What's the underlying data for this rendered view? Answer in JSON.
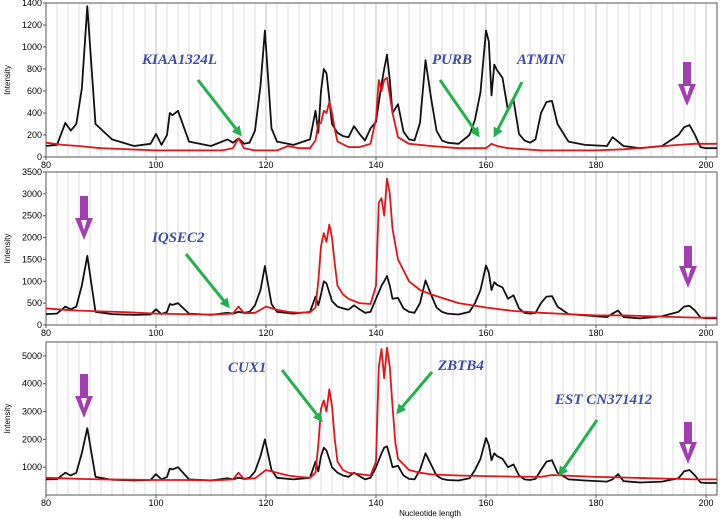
{
  "figure": {
    "xlabel": "Nucleotide length",
    "colors": {
      "black_trace": "#111111",
      "red_trace": "#e0141b",
      "grid": "#c8c8c8",
      "arrow_green": "#22b04f",
      "arrow_purple": "#a23fb0",
      "label_blue": "#3d4aa8"
    }
  },
  "chart_data": [
    {
      "type": "line",
      "ylabel": "Intensity",
      "xlim": [
        80,
        202
      ],
      "ylim": [
        0,
        1400
      ],
      "xticks": [
        80,
        100,
        120,
        140,
        160,
        180,
        200
      ],
      "yticks": [
        0,
        200,
        400,
        600,
        800,
        1000,
        1200,
        1400
      ],
      "series": [
        {
          "color": "#111111",
          "x": [
            80,
            82,
            83.5,
            84.5,
            85.5,
            86.5,
            87.5,
            89,
            92,
            96,
            99,
            100,
            101,
            102,
            102.5,
            103,
            104,
            106,
            110,
            113,
            114,
            115,
            116,
            117,
            118,
            119,
            119.8,
            121,
            122,
            125,
            128,
            129,
            129.5,
            130,
            130.5,
            131,
            132,
            133,
            134,
            135,
            136,
            137,
            138,
            139,
            140,
            141,
            141.5,
            142,
            142.5,
            143,
            144,
            145,
            146,
            147,
            148,
            149,
            150,
            151,
            152,
            153,
            155,
            157,
            158,
            159,
            160,
            160.5,
            161,
            161.5,
            162,
            163,
            164,
            165,
            166,
            167,
            168,
            169,
            170,
            171,
            172,
            173,
            175,
            178,
            182,
            183,
            184,
            185,
            188,
            192,
            195,
            196,
            197,
            198,
            199,
            200,
            202
          ],
          "y": [
            100,
            110,
            310,
            240,
            300,
            620,
            1370,
            300,
            160,
            100,
            120,
            210,
            110,
            200,
            400,
            380,
            420,
            140,
            100,
            160,
            130,
            170,
            120,
            130,
            240,
            650,
            1150,
            260,
            140,
            110,
            160,
            420,
            220,
            600,
            800,
            760,
            300,
            220,
            190,
            180,
            280,
            210,
            150,
            260,
            320,
            660,
            800,
            930,
            700,
            400,
            480,
            230,
            160,
            150,
            310,
            880,
            540,
            240,
            150,
            130,
            120,
            200,
            340,
            590,
            1150,
            1050,
            560,
            840,
            790,
            720,
            420,
            520,
            210,
            150,
            130,
            160,
            400,
            500,
            510,
            300,
            140,
            110,
            100,
            180,
            140,
            100,
            80,
            100,
            200,
            270,
            290,
            200,
            90,
            80,
            80
          ]
        },
        {
          "color": "#e0141b",
          "x": [
            80,
            83,
            86,
            88,
            90,
            95,
            100,
            105,
            110,
            112,
            114,
            115,
            116,
            118,
            120,
            122,
            124,
            126,
            128,
            129,
            129.5,
            130,
            130.5,
            131,
            131.5,
            132,
            132.5,
            133,
            135,
            137,
            139,
            140,
            140.5,
            141,
            141.5,
            142,
            142.5,
            143,
            144,
            146,
            150,
            155,
            160,
            161,
            162,
            164,
            170,
            175,
            180,
            185,
            190,
            195,
            198,
            202
          ],
          "y": [
            130,
            110,
            100,
            90,
            80,
            70,
            60,
            60,
            60,
            60,
            80,
            170,
            80,
            60,
            60,
            60,
            100,
            80,
            80,
            150,
            300,
            310,
            420,
            400,
            500,
            400,
            250,
            140,
            90,
            90,
            120,
            350,
            700,
            600,
            700,
            720,
            560,
            400,
            180,
            120,
            100,
            80,
            80,
            120,
            100,
            80,
            60,
            60,
            60,
            70,
            90,
            110,
            120,
            120
          ]
        }
      ]
    },
    {
      "type": "line",
      "ylabel": "Intensity",
      "xlim": [
        80,
        202
      ],
      "ylim": [
        0,
        3500
      ],
      "xticks": [
        80,
        100,
        120,
        140,
        160,
        180,
        200
      ],
      "yticks": [
        0,
        500,
        1000,
        1500,
        2000,
        2500,
        3000,
        3500
      ],
      "series": [
        {
          "color": "#111111",
          "x": [
            80,
            82,
            83.5,
            84.5,
            85.5,
            86.5,
            87.5,
            89,
            92,
            96,
            99,
            100,
            101,
            102,
            102.5,
            103,
            104,
            106,
            110,
            113,
            114,
            115,
            116,
            117,
            118,
            119,
            119.8,
            121,
            122,
            125,
            128,
            129,
            129.5,
            130,
            130.5,
            131,
            132,
            133,
            134,
            135,
            136,
            137,
            138,
            139,
            140,
            141,
            141.5,
            142,
            142.5,
            143,
            144,
            145,
            146,
            147,
            148,
            149,
            150,
            151,
            152,
            153,
            155,
            157,
            158,
            159,
            160,
            160.5,
            161,
            161.5,
            162,
            163,
            164,
            165,
            166,
            167,
            168,
            169,
            170,
            171,
            172,
            173,
            175,
            178,
            182,
            183,
            184,
            185,
            188,
            192,
            195,
            196,
            197,
            198,
            199,
            200,
            202
          ],
          "y": [
            250,
            260,
            420,
            360,
            420,
            900,
            1580,
            300,
            250,
            230,
            240,
            360,
            250,
            300,
            480,
            460,
            500,
            260,
            230,
            280,
            260,
            300,
            280,
            300,
            450,
            800,
            1350,
            480,
            300,
            260,
            300,
            650,
            450,
            700,
            1000,
            950,
            550,
            420,
            380,
            350,
            450,
            360,
            280,
            300,
            600,
            900,
            1000,
            1120,
            900,
            600,
            620,
            380,
            300,
            280,
            500,
            1020,
            700,
            400,
            300,
            260,
            240,
            300,
            500,
            800,
            1360,
            1200,
            800,
            980,
            920,
            860,
            600,
            680,
            380,
            280,
            260,
            280,
            500,
            650,
            660,
            420,
            250,
            220,
            180,
            260,
            330,
            180,
            150,
            200,
            300,
            420,
            440,
            330,
            170,
            150,
            150
          ]
        },
        {
          "color": "#e0141b",
          "x": [
            80,
            83,
            86,
            88,
            90,
            95,
            100,
            105,
            110,
            112,
            114,
            115,
            116,
            118,
            120,
            122,
            124,
            126,
            128,
            129,
            129.5,
            130,
            130.5,
            131,
            131.5,
            132,
            132.5,
            133,
            134,
            135,
            137,
            139,
            140,
            140.5,
            141,
            141.5,
            142,
            142.5,
            143,
            144,
            146,
            148,
            150,
            155,
            160,
            165,
            170,
            175,
            180,
            185,
            190,
            195,
            198,
            202
          ],
          "y": [
            380,
            350,
            330,
            320,
            310,
            290,
            260,
            250,
            240,
            250,
            260,
            420,
            270,
            280,
            420,
            350,
            300,
            280,
            290,
            400,
            1000,
            1800,
            2100,
            1900,
            2300,
            2000,
            1400,
            900,
            700,
            600,
            500,
            480,
            900,
            2800,
            2900,
            2500,
            3350,
            3000,
            2200,
            1500,
            1000,
            800,
            700,
            500,
            400,
            320,
            280,
            250,
            220,
            220,
            200,
            180,
            170,
            170
          ]
        }
      ]
    },
    {
      "type": "line",
      "ylabel": "Intensity",
      "xlabel": "Nucleotide length",
      "xlim": [
        80,
        202
      ],
      "ylim": [
        0,
        5500
      ],
      "xticks": [
        80,
        100,
        120,
        140,
        160,
        180,
        200
      ],
      "yticks": [
        1000,
        2000,
        3000,
        4000,
        5000
      ],
      "series": [
        {
          "color": "#111111",
          "x": [
            80,
            82,
            83.5,
            84.5,
            85.5,
            86.5,
            87.5,
            89,
            92,
            96,
            99,
            100,
            101,
            102,
            102.5,
            103,
            104,
            106,
            110,
            113,
            114,
            115,
            116,
            117,
            118,
            119,
            119.8,
            121,
            122,
            125,
            128,
            129,
            129.5,
            130,
            130.5,
            131,
            132,
            133,
            134,
            135,
            136,
            137,
            138,
            139,
            140,
            141,
            141.5,
            142,
            142.5,
            143,
            144,
            145,
            146,
            147,
            148,
            149,
            150,
            151,
            152,
            153,
            155,
            157,
            158,
            159,
            160,
            160.5,
            161,
            161.5,
            162,
            163,
            164,
            165,
            166,
            167,
            168,
            169,
            170,
            171,
            172,
            173,
            175,
            178,
            182,
            183,
            184,
            185,
            188,
            192,
            195,
            196,
            197,
            198,
            199,
            200,
            202
          ],
          "y": [
            560,
            570,
            800,
            700,
            800,
            1500,
            2400,
            650,
            550,
            520,
            540,
            750,
            560,
            650,
            950,
            920,
            1000,
            560,
            520,
            600,
            560,
            620,
            580,
            620,
            850,
            1400,
            2000,
            900,
            620,
            560,
            620,
            1200,
            850,
            1400,
            1700,
            1600,
            1000,
            800,
            700,
            650,
            800,
            680,
            560,
            620,
            1000,
            1500,
            1700,
            1750,
            1400,
            1000,
            1050,
            700,
            580,
            560,
            900,
            1500,
            1100,
            700,
            580,
            540,
            520,
            600,
            900,
            1300,
            2050,
            1800,
            1250,
            1500,
            1400,
            1300,
            1000,
            1100,
            700,
            560,
            540,
            580,
            900,
            1200,
            1250,
            800,
            560,
            520,
            480,
            560,
            750,
            500,
            450,
            480,
            600,
            850,
            900,
            700,
            450,
            430,
            430
          ]
        },
        {
          "color": "#e0141b",
          "x": [
            80,
            83,
            86,
            88,
            90,
            95,
            100,
            105,
            110,
            112,
            114,
            115,
            116,
            118,
            120,
            122,
            124,
            126,
            128,
            129,
            129.5,
            130,
            130.5,
            131,
            131.5,
            132,
            132.5,
            133,
            134,
            135,
            137,
            139,
            140,
            140.5,
            141,
            141.5,
            142,
            142.5,
            143,
            143.5,
            144,
            146,
            148,
            150,
            155,
            160,
            165,
            170,
            172,
            174,
            180,
            185,
            190,
            195,
            198,
            202
          ],
          "y": [
            620,
            600,
            580,
            570,
            560,
            550,
            540,
            540,
            530,
            540,
            560,
            800,
            570,
            600,
            900,
            800,
            700,
            650,
            620,
            800,
            1800,
            3100,
            3400,
            3000,
            3800,
            3200,
            2000,
            1200,
            900,
            800,
            750,
            700,
            1200,
            4600,
            5250,
            4200,
            5300,
            4600,
            3200,
            1900,
            1300,
            900,
            800,
            740,
            700,
            680,
            660,
            650,
            720,
            700,
            650,
            630,
            600,
            580,
            560,
            560
          ]
        }
      ]
    }
  ],
  "annotations": {
    "genes": {
      "kiaa1324l": "KIAA1324L",
      "purb": "PURB",
      "atmin": "ATMIN",
      "iqsec2": "IQSEC2",
      "cux1": "CUX1",
      "zbtb4": "ZBTB4",
      "est": "EST CN371412"
    }
  }
}
